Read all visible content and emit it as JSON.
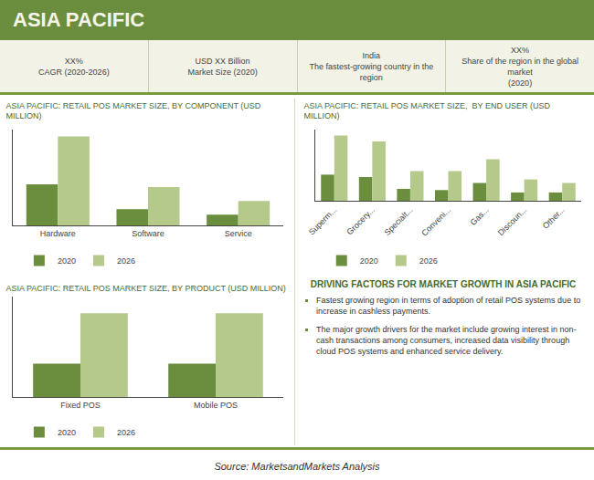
{
  "chart_data": [
    {
      "type": "bar",
      "title": "ASIA PACIFIC: RETAIL POS MARKET SIZE, BY COMPONENT (USD MILLION)",
      "categories": [
        "Hardware",
        "Software",
        "Service"
      ],
      "series": [
        {
          "name": "2020",
          "color": "#6b8e3e",
          "values": [
            3.0,
            1.2,
            0.8
          ]
        },
        {
          "name": "2026",
          "color": "#b5c98a",
          "values": [
            6.5,
            2.8,
            1.8
          ]
        }
      ],
      "ylim": [
        0,
        7
      ],
      "tick_labels": "x",
      "grid": false,
      "legend": "bottom",
      "annotations": [
        "ASIA PACIFIC",
        "XX%\nCAGR (2020-2026)",
        "USD XX Billion\nMarket Size (2020)",
        "India\nThe fastest-growing country in the\nregion",
        "XX%\nShare of the region in the global market\n(2020)"
      ]
    },
    {
      "type": "bar",
      "title": "ASIA PACIFIC: RETAIL POS MARKET SIZE,  BY END USER (USD MILLION)",
      "categories": [
        "Superm...",
        "Grocery...",
        "Specialt...",
        "Conveni...",
        "Gas...",
        "Discoun...",
        "Other..."
      ],
      "series": [
        {
          "name": "2020",
          "color": "#6b8e3e",
          "values": [
            2.2,
            2.0,
            1.0,
            0.9,
            1.5,
            0.7,
            0.7
          ]
        },
        {
          "name": "2026",
          "color": "#b5c98a",
          "values": [
            5.5,
            5.0,
            2.5,
            2.5,
            3.5,
            1.8,
            1.5
          ]
        }
      ],
      "ylim": [
        0,
        6
      ],
      "tick_labels": "x",
      "grid": false,
      "legend": "bottom"
    },
    {
      "type": "bar",
      "title": "ASIA PACIFIC: RETAIL POS MARKET SIZE, BY PRODUCT (USD MILLION)",
      "categories": [
        "Fixed POS",
        "Mobile POS"
      ],
      "series": [
        {
          "name": "2020",
          "color": "#6b8e3e",
          "values": [
            1.0,
            1.0
          ]
        },
        {
          "name": "2026",
          "color": "#b5c98a",
          "values": [
            2.5,
            2.5
          ]
        }
      ],
      "ylim": [
        0,
        3
      ],
      "tick_labels": "x",
      "grid": false,
      "legend": "bottom",
      "annotations": [
        "DRIVING FACTORS FOR MARKET GROWTH IN ASIA PACIFIC",
        "Fastest growing region in terms of adoption of retail POS systems due to increase in cashless payments.",
        "The major growth drivers for the market include growing interest in non-cash transactions among consumers, increased data visibility through cloud POS systems and enhanced service delivery.",
        "Source: MarketsandMarkets Analysis"
      ]
    }
  ]
}
